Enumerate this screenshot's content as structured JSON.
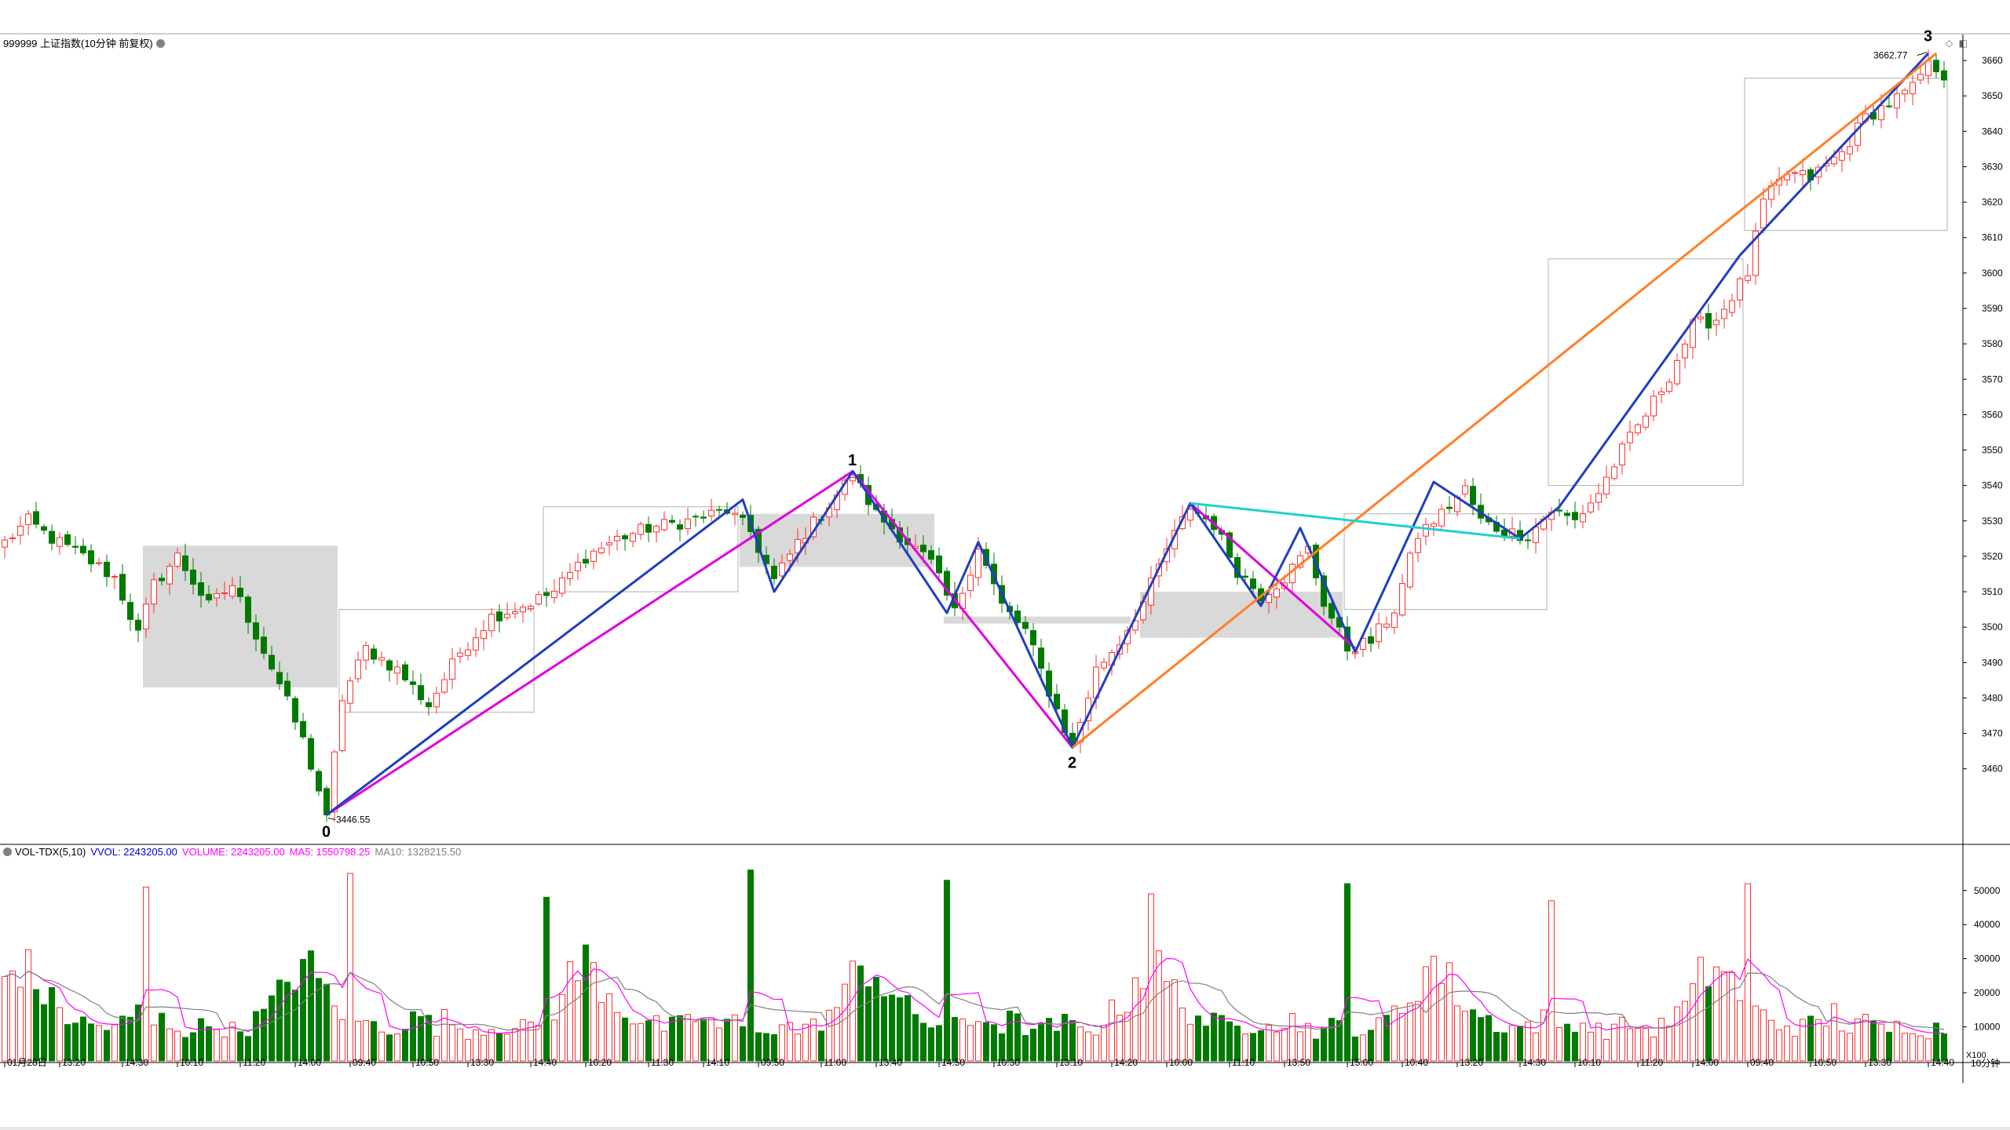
{
  "header": {
    "title": "999999 上证指数(10分钟 前复权)"
  },
  "volume_header": {
    "name": "VOL-TDX(5,10)",
    "vvol": "VVOL: 2243205.00",
    "volume": "VOLUME: 2243205.00",
    "ma5": "MA5: 1550798.25",
    "ma10": "MA10: 1328215.50"
  },
  "colors": {
    "up": "#ff3030",
    "down": "#007a00",
    "blue_line": "#1f3fbf",
    "magenta_line": "#e000e0",
    "orange_line": "#ff7f27",
    "cyan_line": "#20d0d0",
    "ma5": "#ff00ff",
    "ma10": "#808080",
    "box_fill": "#d9d9d9",
    "box_outline": "#b0b0b0"
  },
  "wave_labels": [
    {
      "text": "0",
      "index": 41,
      "price": 3446.55
    },
    {
      "text": "1",
      "index": 108,
      "price": 3543.0
    },
    {
      "text": "2",
      "index": 136,
      "price": 3466.0
    },
    {
      "text": "3",
      "index": 245,
      "price": 3662.77
    }
  ],
  "price_callouts": {
    "low": "3446.55",
    "high": "3662.77"
  },
  "icons": [
    "diamond-icon",
    "window-icon"
  ],
  "period_label": "10分钟",
  "vol_unit": "X100",
  "chart_data": {
    "type": "candlestick",
    "y_axis_ticks": [
      "3460",
      "3470",
      "3480",
      "3490",
      "3500",
      "3510",
      "3520",
      "3530",
      "3540",
      "3550",
      "3560",
      "3570",
      "3580",
      "3590",
      "3600",
      "3610",
      "3620",
      "3630",
      "3640",
      "3650",
      "3660"
    ],
    "ylim": [
      3440,
      3666
    ],
    "vol_ticks": [
      "10000",
      "20000",
      "30000",
      "40000",
      "50000"
    ],
    "vol_ylim": [
      0,
      58000
    ],
    "x_labels": [
      {
        "i": 0,
        "t": "01月28日"
      },
      {
        "i": 7,
        "t": "13:20"
      },
      {
        "i": 15,
        "t": "14:30"
      },
      {
        "i": 22,
        "t": "10:10"
      },
      {
        "i": 30,
        "t": "11:20"
      },
      {
        "i": 37,
        "t": "14:00"
      },
      {
        "i": 44,
        "t": "09:40"
      },
      {
        "i": 52,
        "t": "10:50"
      },
      {
        "i": 59,
        "t": "13:30"
      },
      {
        "i": 67,
        "t": "14:40"
      },
      {
        "i": 74,
        "t": "10:20"
      },
      {
        "i": 82,
        "t": "11:30"
      },
      {
        "i": 89,
        "t": "14:10"
      },
      {
        "i": 96,
        "t": "09:50"
      },
      {
        "i": 104,
        "t": "11:00"
      },
      {
        "i": 111,
        "t": "13:40"
      },
      {
        "i": 119,
        "t": "14:50"
      },
      {
        "i": 126,
        "t": "10:30"
      },
      {
        "i": 134,
        "t": "13:10"
      },
      {
        "i": 141,
        "t": "14:20"
      },
      {
        "i": 148,
        "t": "10:00"
      },
      {
        "i": 156,
        "t": "11:10"
      },
      {
        "i": 163,
        "t": "13:50"
      },
      {
        "i": 171,
        "t": "15:00"
      },
      {
        "i": 178,
        "t": "10:40"
      },
      {
        "i": 185,
        "t": "13:20"
      },
      {
        "i": 193,
        "t": "14:30"
      },
      {
        "i": 200,
        "t": "10:10"
      },
      {
        "i": 208,
        "t": "11:20"
      },
      {
        "i": 215,
        "t": "14:00"
      },
      {
        "i": 222,
        "t": "09:40"
      },
      {
        "i": 230,
        "t": "10:50"
      },
      {
        "i": 237,
        "t": "13:30"
      },
      {
        "i": 245,
        "t": "14:40"
      }
    ],
    "anchors": [
      [
        0,
        3524
      ],
      [
        3,
        3530
      ],
      [
        6,
        3525
      ],
      [
        10,
        3520
      ],
      [
        14,
        3514
      ],
      [
        17,
        3498
      ],
      [
        19,
        3512
      ],
      [
        22,
        3520
      ],
      [
        26,
        3506
      ],
      [
        29,
        3512
      ],
      [
        32,
        3498
      ],
      [
        35,
        3484
      ],
      [
        38,
        3468
      ],
      [
        41,
        3447
      ],
      [
        43,
        3480
      ],
      [
        46,
        3494
      ],
      [
        50,
        3488
      ],
      [
        54,
        3478
      ],
      [
        58,
        3493
      ],
      [
        62,
        3503
      ],
      [
        66,
        3506
      ],
      [
        70,
        3510
      ],
      [
        74,
        3520
      ],
      [
        78,
        3525
      ],
      [
        82,
        3528
      ],
      [
        87,
        3530
      ],
      [
        92,
        3533
      ],
      [
        95,
        3527
      ],
      [
        98,
        3513
      ],
      [
        101,
        3524
      ],
      [
        104,
        3532
      ],
      [
        108,
        3543
      ],
      [
        111,
        3532
      ],
      [
        115,
        3524
      ],
      [
        118,
        3518
      ],
      [
        121,
        3504
      ],
      [
        124,
        3523
      ],
      [
        127,
        3506
      ],
      [
        130,
        3499
      ],
      [
        133,
        3482
      ],
      [
        136,
        3466
      ],
      [
        139,
        3488
      ],
      [
        142,
        3496
      ],
      [
        145,
        3507
      ],
      [
        148,
        3522
      ],
      [
        151,
        3534
      ],
      [
        154,
        3529
      ],
      [
        157,
        3516
      ],
      [
        160,
        3509
      ],
      [
        163,
        3514
      ],
      [
        166,
        3522
      ],
      [
        168,
        3507
      ],
      [
        171,
        3494
      ],
      [
        174,
        3496
      ],
      [
        177,
        3505
      ],
      [
        180,
        3526
      ],
      [
        183,
        3532
      ],
      [
        186,
        3539
      ],
      [
        188,
        3530
      ],
      [
        191,
        3527
      ],
      [
        194,
        3526
      ],
      [
        197,
        3533
      ],
      [
        200,
        3530
      ],
      [
        203,
        3538
      ],
      [
        206,
        3550
      ],
      [
        209,
        3560
      ],
      [
        212,
        3571
      ],
      [
        215,
        3585
      ],
      [
        218,
        3587
      ],
      [
        222,
        3600
      ],
      [
        224,
        3620
      ],
      [
        227,
        3628
      ],
      [
        230,
        3627
      ],
      [
        234,
        3634
      ],
      [
        237,
        3644
      ],
      [
        240,
        3648
      ],
      [
        243,
        3652
      ],
      [
        245,
        3660
      ],
      [
        247,
        3656
      ]
    ],
    "boxes": [
      {
        "i0": 18,
        "i1": 42,
        "lo": 3483,
        "hi": 3523,
        "fill": true
      },
      {
        "i0": 43,
        "i1": 67,
        "lo": 3476,
        "hi": 3505,
        "fill": false
      },
      {
        "i0": 69,
        "i1": 93,
        "lo": 3510,
        "hi": 3534,
        "fill": false
      },
      {
        "i0": 94,
        "i1": 118,
        "lo": 3517,
        "hi": 3532,
        "fill": true
      },
      {
        "i0": 120,
        "i1": 143,
        "lo": 3501,
        "hi": 3503,
        "fill": true
      },
      {
        "i0": 145,
        "i1": 170,
        "lo": 3497,
        "hi": 3510,
        "fill": true
      },
      {
        "i0": 171,
        "i1": 196,
        "lo": 3505,
        "hi": 3532,
        "fill": false
      },
      {
        "i0": 197,
        "i1": 221,
        "lo": 3540,
        "hi": 3604,
        "fill": false
      },
      {
        "i0": 222,
        "i1": 247,
        "lo": 3612,
        "hi": 3655,
        "fill": false
      }
    ],
    "lines": [
      {
        "color": "magenta",
        "pts": [
          [
            41,
            3447
          ],
          [
            108,
            3544
          ],
          [
            136,
            3466
          ]
        ]
      },
      {
        "color": "magenta",
        "pts": [
          [
            151,
            3535
          ],
          [
            172,
            3494
          ]
        ]
      },
      {
        "color": "blue",
        "pts": [
          [
            41,
            3447
          ],
          [
            94,
            3536
          ],
          [
            98,
            3510
          ],
          [
            108,
            3544
          ],
          [
            120,
            3504
          ],
          [
            124,
            3524
          ],
          [
            136,
            3466
          ],
          [
            151,
            3535
          ],
          [
            160,
            3506
          ],
          [
            165,
            3528
          ],
          [
            172,
            3493
          ],
          [
            182,
            3541
          ],
          [
            193,
            3525
          ],
          [
            198,
            3534
          ],
          [
            221,
            3605
          ],
          [
            245,
            3662
          ]
        ]
      },
      {
        "color": "orange",
        "pts": [
          [
            136,
            3466
          ],
          [
            246,
            3662
          ]
        ]
      },
      {
        "color": "cyan",
        "pts": [
          [
            151,
            3535
          ],
          [
            193,
            3525
          ]
        ]
      }
    ],
    "volume_profile": [
      11000,
      10000,
      12000,
      11000,
      10000,
      9000,
      9000,
      10000,
      10000,
      11000,
      10000,
      9000,
      9500,
      10000,
      12000,
      14000,
      16000,
      19000,
      24000,
      27000,
      29000,
      26000,
      23000,
      20000,
      17000,
      15000,
      13000,
      12000,
      11000,
      10500,
      10000,
      10000,
      10500,
      11000,
      12000,
      14000
    ],
    "volume_spikes": [
      {
        "i": 18,
        "v": 51000
      },
      {
        "i": 44,
        "v": 55000
      },
      {
        "i": 69,
        "v": 48000
      },
      {
        "i": 95,
        "v": 56000
      },
      {
        "i": 120,
        "v": 53000
      },
      {
        "i": 146,
        "v": 49000
      },
      {
        "i": 171,
        "v": 52000
      },
      {
        "i": 197,
        "v": 47000
      },
      {
        "i": 222,
        "v": 52000
      }
    ]
  }
}
